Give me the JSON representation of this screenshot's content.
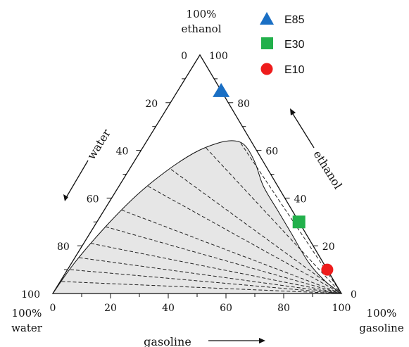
{
  "chart_data": {
    "type": "ternary",
    "corners": {
      "top": {
        "line1": "100%",
        "line2": "ethanol"
      },
      "left": {
        "line1": "100%",
        "line2": "water"
      },
      "right": {
        "line1": "100%",
        "line2": "gasoline"
      }
    },
    "axes": {
      "water": {
        "label": "water",
        "ticks": [
          0,
          20,
          40,
          60,
          80,
          100
        ],
        "tick_labels": [
          "0",
          "20",
          "40",
          "60",
          "80",
          "100"
        ]
      },
      "ethanol": {
        "label": "ethanol",
        "ticks": [
          0,
          20,
          40,
          60,
          80,
          100
        ],
        "tick_labels": [
          "0",
          "20",
          "40",
          "60",
          "80",
          "100"
        ]
      },
      "gasoline": {
        "label": "gasoline",
        "ticks": [
          0,
          20,
          40,
          60,
          80,
          100
        ],
        "tick_labels": [
          "0",
          "20",
          "40",
          "60",
          "80",
          "100"
        ]
      }
    },
    "two_phase_region": {
      "fill": "#e6e6e6",
      "boundary": [
        {
          "gasoline": 0,
          "ethanol": 0
        },
        {
          "gasoline": 1,
          "ethanol": 13
        },
        {
          "gasoline": 4,
          "ethanol": 28
        },
        {
          "gasoline": 8,
          "ethanol": 41
        },
        {
          "gasoline": 13,
          "ethanol": 51
        },
        {
          "gasoline": 19,
          "ethanol": 59
        },
        {
          "gasoline": 25,
          "ethanol": 63
        },
        {
          "gasoline": 30,
          "ethanol": 64
        },
        {
          "gasoline": 35,
          "ethanol": 62
        },
        {
          "gasoline": 42,
          "ethanol": 55
        },
        {
          "gasoline": 50,
          "ethanol": 45
        },
        {
          "gasoline": 60,
          "ethanol": 35
        },
        {
          "gasoline": 70,
          "ethanol": 25
        },
        {
          "gasoline": 82,
          "ethanol": 13
        },
        {
          "gasoline": 92,
          "ethanol": 5
        },
        {
          "gasoline": 100,
          "ethanol": 0
        }
      ],
      "tie_lines_water_end": [
        {
          "gasoline": 33,
          "ethanol": 63
        },
        {
          "gasoline": 22,
          "ethanol": 61
        },
        {
          "gasoline": 14.5,
          "ethanol": 52
        },
        {
          "gasoline": 10,
          "ethanol": 45
        },
        {
          "gasoline": 6,
          "ethanol": 35
        },
        {
          "gasoline": 4,
          "ethanol": 28
        },
        {
          "gasoline": 2.5,
          "ethanol": 21
        },
        {
          "gasoline": 1.5,
          "ethanol": 15
        },
        {
          "gasoline": 1,
          "ethanol": 10
        },
        {
          "gasoline": 0.5,
          "ethanol": 5
        }
      ],
      "tie_line_gasoline_end": {
        "gasoline": 100,
        "ethanol": 0
      }
    },
    "series": [
      {
        "name": "E85",
        "marker": "triangle",
        "color": "#1a6fc4",
        "gasoline": 15,
        "ethanol": 85
      },
      {
        "name": "E30",
        "marker": "square",
        "color": "#22b04b",
        "gasoline": 70,
        "ethanol": 30
      },
      {
        "name": "E10",
        "marker": "circle",
        "color": "#ee1c1c",
        "gasoline": 90,
        "ethanol": 10
      }
    ],
    "legend_position": "top-right"
  }
}
